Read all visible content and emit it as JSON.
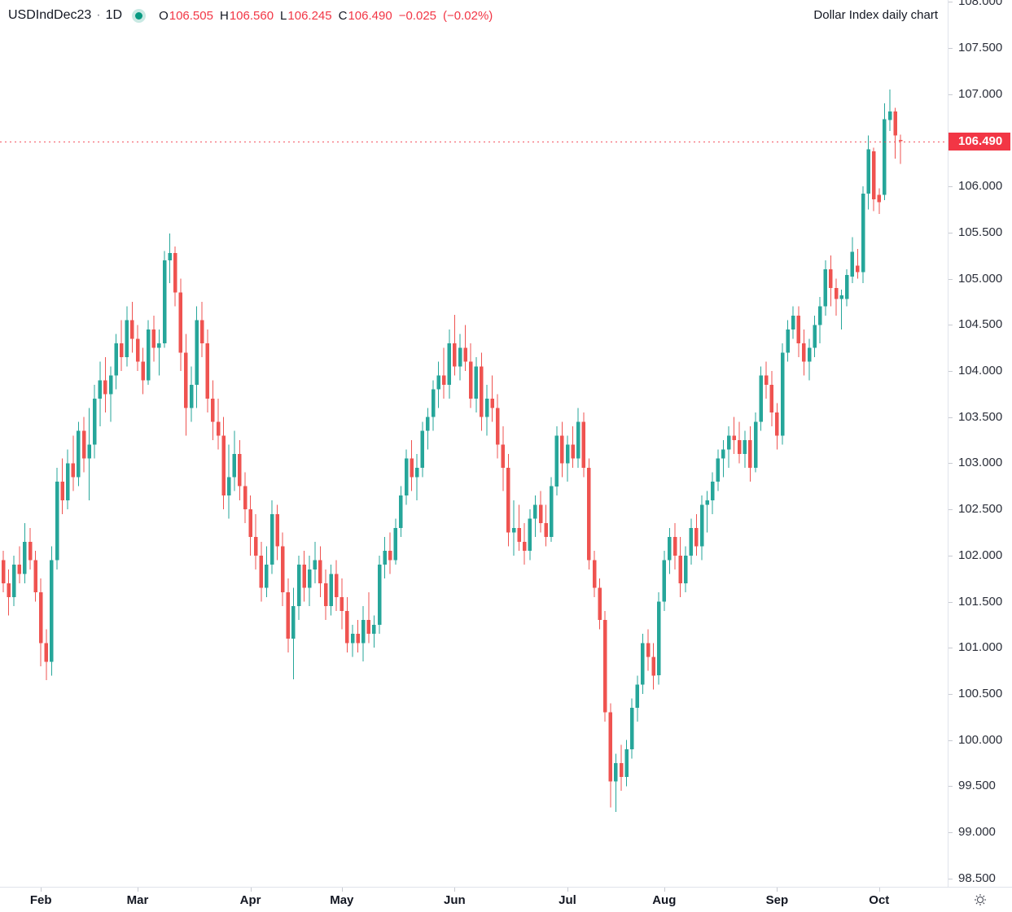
{
  "header": {
    "symbol": "USDIndDec23",
    "separator": "·",
    "interval": "1D",
    "ohlc": {
      "open_label": "O",
      "open": "106.505",
      "high_label": "H",
      "high": "106.560",
      "low_label": "L",
      "low": "106.245",
      "close_label": "C",
      "close": "106.490",
      "change": "−0.025",
      "change_pct": "(−0.02%)"
    },
    "note": "Dollar Index daily chart"
  },
  "colors": {
    "up": "#26a69a",
    "down": "#ef5350",
    "accent_red": "#f23645",
    "status_green": "#089981",
    "axis_text": "#131722",
    "grid_line": "#e0e3eb"
  },
  "price_scale": {
    "labels": [
      "108.000",
      "107.500",
      "107.000",
      "106.000",
      "105.500",
      "105.000",
      "104.500",
      "104.000",
      "103.500",
      "103.000",
      "102.500",
      "102.000",
      "101.500",
      "101.000",
      "100.500",
      "100.000",
      "99.500",
      "99.000",
      "98.500"
    ],
    "price_tag": "106.490",
    "tag_value": 106.49
  },
  "time_scale": {
    "months": [
      {
        "label": "Feb",
        "index": 7
      },
      {
        "label": "Mar",
        "index": 25
      },
      {
        "label": "Apr",
        "index": 46
      },
      {
        "label": "May",
        "index": 63
      },
      {
        "label": "Jun",
        "index": 84
      },
      {
        "label": "Jul",
        "index": 105
      },
      {
        "label": "Aug",
        "index": 123
      },
      {
        "label": "Sep",
        "index": 144
      },
      {
        "label": "Oct",
        "index": 163
      }
    ]
  },
  "chart_data": {
    "type": "candlestick",
    "title": "USDIndDec23 1D — Dollar Index daily chart",
    "x_range": "late Jan through early Oct, daily bars",
    "ylim": [
      98.41,
      108.02
    ],
    "last_price": 106.49,
    "ohlc_format": [
      "open",
      "high",
      "low",
      "close"
    ],
    "candles": [
      [
        101.95,
        102.05,
        101.6,
        101.7
      ],
      [
        101.7,
        101.85,
        101.35,
        101.55
      ],
      [
        101.55,
        102.0,
        101.45,
        101.9
      ],
      [
        101.9,
        102.1,
        101.7,
        101.8
      ],
      [
        101.8,
        102.35,
        101.7,
        102.15
      ],
      [
        102.15,
        102.3,
        101.85,
        101.95
      ],
      [
        101.95,
        102.05,
        101.5,
        101.6
      ],
      [
        101.6,
        101.75,
        100.8,
        101.05
      ],
      [
        101.05,
        101.2,
        100.65,
        100.85
      ],
      [
        100.85,
        102.1,
        100.7,
        101.95
      ],
      [
        101.95,
        102.95,
        101.85,
        102.8
      ],
      [
        102.8,
        103.05,
        102.45,
        102.6
      ],
      [
        102.6,
        103.15,
        102.5,
        103.0
      ],
      [
        103.0,
        103.3,
        102.7,
        102.85
      ],
      [
        102.85,
        103.45,
        102.75,
        103.35
      ],
      [
        103.35,
        103.5,
        102.9,
        103.05
      ],
      [
        103.05,
        103.6,
        102.6,
        103.2
      ],
      [
        103.2,
        103.85,
        103.05,
        103.7
      ],
      [
        103.7,
        104.1,
        103.4,
        103.9
      ],
      [
        103.9,
        104.15,
        103.55,
        103.75
      ],
      [
        103.75,
        104.05,
        103.45,
        103.95
      ],
      [
        103.95,
        104.4,
        103.8,
        104.3
      ],
      [
        104.3,
        104.55,
        104.0,
        104.15
      ],
      [
        104.15,
        104.7,
        104.05,
        104.55
      ],
      [
        104.55,
        104.75,
        104.2,
        104.35
      ],
      [
        104.35,
        104.5,
        104.0,
        104.1
      ],
      [
        104.1,
        104.25,
        103.75,
        103.9
      ],
      [
        103.9,
        104.55,
        103.85,
        104.45
      ],
      [
        104.45,
        104.6,
        104.1,
        104.25
      ],
      [
        104.25,
        104.45,
        103.95,
        104.3
      ],
      [
        104.3,
        105.3,
        104.25,
        105.2
      ],
      [
        105.2,
        105.49,
        104.95,
        105.28
      ],
      [
        105.28,
        105.35,
        104.7,
        104.85
      ],
      [
        104.85,
        105.0,
        104.0,
        104.2
      ],
      [
        104.2,
        104.4,
        103.3,
        103.6
      ],
      [
        103.6,
        104.05,
        103.45,
        103.85
      ],
      [
        103.85,
        104.7,
        103.6,
        104.55
      ],
      [
        104.55,
        104.75,
        104.15,
        104.3
      ],
      [
        104.3,
        104.45,
        103.55,
        103.7
      ],
      [
        103.7,
        103.9,
        103.25,
        103.45
      ],
      [
        103.45,
        103.7,
        103.15,
        103.3
      ],
      [
        103.3,
        103.5,
        102.5,
        102.65
      ],
      [
        102.65,
        103.2,
        102.4,
        102.85
      ],
      [
        102.85,
        103.35,
        102.7,
        103.1
      ],
      [
        103.1,
        103.25,
        102.6,
        102.75
      ],
      [
        102.75,
        102.9,
        102.35,
        102.5
      ],
      [
        102.5,
        102.65,
        102.0,
        102.2
      ],
      [
        102.2,
        102.45,
        101.85,
        102.0
      ],
      [
        102.0,
        102.15,
        101.5,
        101.65
      ],
      [
        101.65,
        102.1,
        101.55,
        101.9
      ],
      [
        101.9,
        102.6,
        101.8,
        102.45
      ],
      [
        102.45,
        102.55,
        101.95,
        102.1
      ],
      [
        102.1,
        102.25,
        101.45,
        101.6
      ],
      [
        101.6,
        101.75,
        100.95,
        101.1
      ],
      [
        101.1,
        101.65,
        100.66,
        101.45
      ],
      [
        101.45,
        102.0,
        101.3,
        101.9
      ],
      [
        101.9,
        102.05,
        101.5,
        101.65
      ],
      [
        101.65,
        102.0,
        101.45,
        101.85
      ],
      [
        101.85,
        102.15,
        101.7,
        101.95
      ],
      [
        101.95,
        102.1,
        101.55,
        101.7
      ],
      [
        101.7,
        101.85,
        101.3,
        101.45
      ],
      [
        101.45,
        101.9,
        101.35,
        101.8
      ],
      [
        101.8,
        101.95,
        101.4,
        101.55
      ],
      [
        101.55,
        101.75,
        101.2,
        101.4
      ],
      [
        101.4,
        101.55,
        100.95,
        101.05
      ],
      [
        101.05,
        101.25,
        100.9,
        101.15
      ],
      [
        101.15,
        101.3,
        100.95,
        101.05
      ],
      [
        101.05,
        101.45,
        100.85,
        101.3
      ],
      [
        101.3,
        101.6,
        101.05,
        101.15
      ],
      [
        101.15,
        101.35,
        101.0,
        101.25
      ],
      [
        101.25,
        102.0,
        101.15,
        101.9
      ],
      [
        101.9,
        102.2,
        101.75,
        102.05
      ],
      [
        102.05,
        102.25,
        101.8,
        101.95
      ],
      [
        101.95,
        102.4,
        101.9,
        102.3
      ],
      [
        102.3,
        102.75,
        102.2,
        102.65
      ],
      [
        102.65,
        103.15,
        102.55,
        103.05
      ],
      [
        103.05,
        103.25,
        102.7,
        102.85
      ],
      [
        102.85,
        103.1,
        102.6,
        102.95
      ],
      [
        102.95,
        103.45,
        102.85,
        103.35
      ],
      [
        103.35,
        103.6,
        103.15,
        103.5
      ],
      [
        103.5,
        103.9,
        103.35,
        103.8
      ],
      [
        103.8,
        104.1,
        103.6,
        103.95
      ],
      [
        103.95,
        104.25,
        103.7,
        103.85
      ],
      [
        103.85,
        104.45,
        103.7,
        104.3
      ],
      [
        104.3,
        104.61,
        103.95,
        104.05
      ],
      [
        104.05,
        104.4,
        103.9,
        104.25
      ],
      [
        104.25,
        104.5,
        104.0,
        104.1
      ],
      [
        104.1,
        104.3,
        103.6,
        103.7
      ],
      [
        103.7,
        104.15,
        103.55,
        104.05
      ],
      [
        104.05,
        104.2,
        103.35,
        103.5
      ],
      [
        103.5,
        103.85,
        103.3,
        103.7
      ],
      [
        103.7,
        103.95,
        103.45,
        103.6
      ],
      [
        103.6,
        103.75,
        103.05,
        103.2
      ],
      [
        103.2,
        103.4,
        102.7,
        102.95
      ],
      [
        102.95,
        103.1,
        102.1,
        102.25
      ],
      [
        102.25,
        102.6,
        102.0,
        102.3
      ],
      [
        102.3,
        102.55,
        102.05,
        102.15
      ],
      [
        102.15,
        102.35,
        101.9,
        102.05
      ],
      [
        102.05,
        102.5,
        101.95,
        102.4
      ],
      [
        102.4,
        102.65,
        102.2,
        102.55
      ],
      [
        102.55,
        102.7,
        102.25,
        102.35
      ],
      [
        102.35,
        102.55,
        102.1,
        102.2
      ],
      [
        102.2,
        102.85,
        102.15,
        102.75
      ],
      [
        102.75,
        103.4,
        102.65,
        103.3
      ],
      [
        103.3,
        103.45,
        102.85,
        103.0
      ],
      [
        103.0,
        103.3,
        102.8,
        103.2
      ],
      [
        103.2,
        103.4,
        102.95,
        103.05
      ],
      [
        103.05,
        103.6,
        102.95,
        103.45
      ],
      [
        103.45,
        103.55,
        102.85,
        102.95
      ],
      [
        102.95,
        103.05,
        101.85,
        101.95
      ],
      [
        101.95,
        102.05,
        101.55,
        101.65
      ],
      [
        101.65,
        101.75,
        101.2,
        101.3
      ],
      [
        101.3,
        101.4,
        100.2,
        100.3
      ],
      [
        100.3,
        100.4,
        99.27,
        99.55
      ],
      [
        99.55,
        99.85,
        99.22,
        99.75
      ],
      [
        99.75,
        99.95,
        99.45,
        99.6
      ],
      [
        99.6,
        100.0,
        99.5,
        99.9
      ],
      [
        99.9,
        100.45,
        99.8,
        100.35
      ],
      [
        100.35,
        100.7,
        100.2,
        100.6
      ],
      [
        100.6,
        101.15,
        100.5,
        101.05
      ],
      [
        101.05,
        101.2,
        100.75,
        100.9
      ],
      [
        100.9,
        101.05,
        100.55,
        100.7
      ],
      [
        100.7,
        101.6,
        100.6,
        101.5
      ],
      [
        101.5,
        102.05,
        101.4,
        101.95
      ],
      [
        101.95,
        102.3,
        101.8,
        102.2
      ],
      [
        102.2,
        102.35,
        101.85,
        102.0
      ],
      [
        102.0,
        102.2,
        101.55,
        101.7
      ],
      [
        101.7,
        102.1,
        101.6,
        102.0
      ],
      [
        102.0,
        102.4,
        101.9,
        102.3
      ],
      [
        102.3,
        102.45,
        102.0,
        102.1
      ],
      [
        102.1,
        102.65,
        101.95,
        102.55
      ],
      [
        102.55,
        102.7,
        102.25,
        102.6
      ],
      [
        102.6,
        102.9,
        102.45,
        102.8
      ],
      [
        102.8,
        103.15,
        102.7,
        103.05
      ],
      [
        103.05,
        103.25,
        102.85,
        103.15
      ],
      [
        103.15,
        103.4,
        102.95,
        103.3
      ],
      [
        103.3,
        103.5,
        103.1,
        103.25
      ],
      [
        103.25,
        103.45,
        103.0,
        103.1
      ],
      [
        103.1,
        103.35,
        102.95,
        103.25
      ],
      [
        103.25,
        103.4,
        102.8,
        102.95
      ],
      [
        102.95,
        103.55,
        102.9,
        103.45
      ],
      [
        103.45,
        104.05,
        103.35,
        103.95
      ],
      [
        103.95,
        104.1,
        103.7,
        103.85
      ],
      [
        103.85,
        104.0,
        103.4,
        103.55
      ],
      [
        103.55,
        103.65,
        103.15,
        103.3
      ],
      [
        103.3,
        104.3,
        103.2,
        104.2
      ],
      [
        104.2,
        104.55,
        104.1,
        104.45
      ],
      [
        104.45,
        104.7,
        104.35,
        104.6
      ],
      [
        104.6,
        104.7,
        104.15,
        104.3
      ],
      [
        104.3,
        104.45,
        103.95,
        104.1
      ],
      [
        104.1,
        104.35,
        103.9,
        104.25
      ],
      [
        104.25,
        104.6,
        104.15,
        104.5
      ],
      [
        104.5,
        104.8,
        104.3,
        104.7
      ],
      [
        104.7,
        105.2,
        104.6,
        105.1
      ],
      [
        105.1,
        105.25,
        104.7,
        104.9
      ],
      [
        104.9,
        105.0,
        104.6,
        104.78
      ],
      [
        104.78,
        104.88,
        104.45,
        104.82
      ],
      [
        104.78,
        105.1,
        104.7,
        105.04
      ],
      [
        105.02,
        105.45,
        104.95,
        105.29
      ],
      [
        105.14,
        105.32,
        105.0,
        105.07
      ],
      [
        105.07,
        106.0,
        104.95,
        105.92
      ],
      [
        105.92,
        106.55,
        105.75,
        106.4
      ],
      [
        106.38,
        106.42,
        105.73,
        105.86
      ],
      [
        105.91,
        105.98,
        105.7,
        105.83
      ],
      [
        105.91,
        106.9,
        105.85,
        106.73
      ],
      [
        106.72,
        107.05,
        106.6,
        106.81
      ],
      [
        106.81,
        106.85,
        106.3,
        106.55
      ],
      [
        106.505,
        106.56,
        106.245,
        106.49
      ]
    ]
  }
}
